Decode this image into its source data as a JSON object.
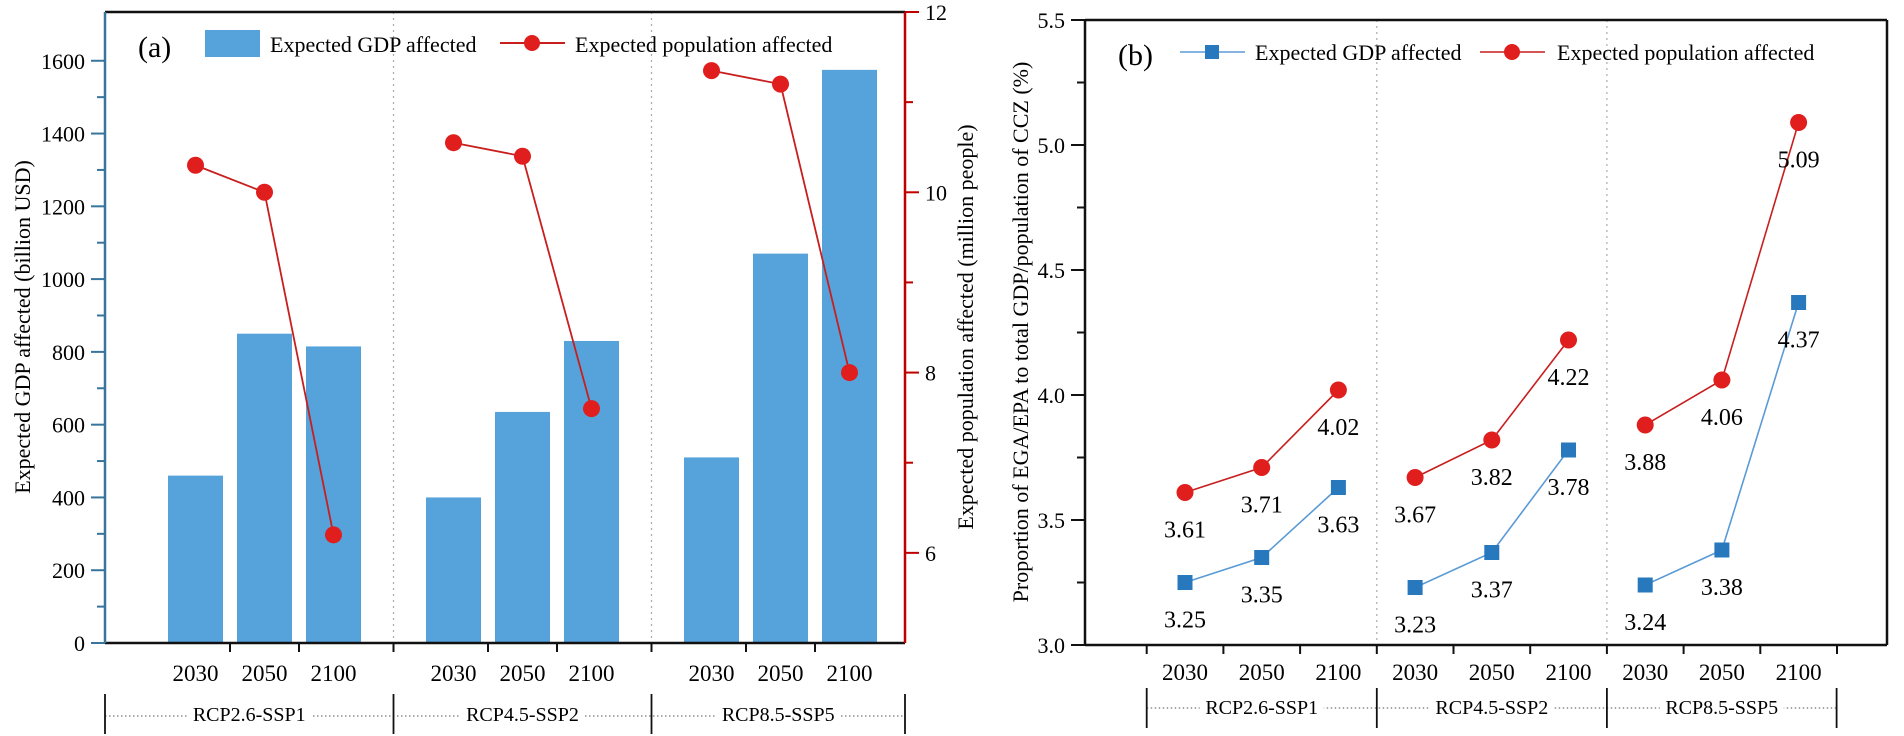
{
  "panel_a": {
    "label": "(a)",
    "legend": [
      "Expected GDP affected",
      "Expected population affected"
    ],
    "ytick_labels_left": [
      "0",
      "200",
      "400",
      "600",
      "800",
      "1000",
      "1200",
      "1400",
      "1600"
    ],
    "ytick_labels_right": [
      "6",
      "8",
      "10",
      "12"
    ],
    "group_labels": [
      "RCP2.6-SSP1",
      "RCP4.5-SSP2",
      "RCP8.5-SSP5"
    ]
  },
  "panel_b": {
    "label": "(b)",
    "legend": [
      "Expected GDP affected",
      "Expected population affected"
    ],
    "ytick_labels": [
      "3.0",
      "3.5",
      "4.0",
      "4.5",
      "5.0",
      "5.5"
    ],
    "group_labels": [
      "RCP2.6-SSP1",
      "RCP4.5-SSP2",
      "RCP8.5-SSP5"
    ]
  },
  "colors": {
    "bar_blue": "#55A3DA",
    "pop_red": "#E01E1E",
    "pop_line_red": "#C81E1E",
    "right_axis_red": "#C00000",
    "left_axis_blue_a": "#38749B",
    "gdp_marker_blue": "#2878BE",
    "gdp_line_blue": "#5B9BD5",
    "axis_black": "#111111",
    "divider_gray": "#AAAAAA",
    "leader_gray": "#555555"
  },
  "chart_data": [
    {
      "type": "bar",
      "panel": "a",
      "title": "",
      "categories": [
        "2030",
        "2050",
        "2100",
        "2030",
        "2050",
        "2100",
        "2030",
        "2050",
        "2100"
      ],
      "groups": [
        "RCP2.6-SSP1",
        "RCP4.5-SSP2",
        "RCP8.5-SSP5"
      ],
      "series": [
        {
          "name": "Expected GDP affected",
          "type": "bar",
          "axis": "left",
          "values": [
            460,
            850,
            815,
            400,
            635,
            830,
            510,
            1070,
            1575
          ]
        },
        {
          "name": "Expected population affected",
          "type": "line",
          "axis": "right",
          "values": [
            10.3,
            10.0,
            6.2,
            10.55,
            10.4,
            7.6,
            11.35,
            11.2,
            8.0
          ]
        }
      ],
      "xlabel": "",
      "ylabel": "Expected GDP affected (billion USD)",
      "ylabel_right": "Expected population affected (million people)",
      "ylim_left": [
        0,
        1740
      ],
      "yticks_left": [
        0,
        200,
        400,
        600,
        800,
        1000,
        1200,
        1400,
        1600
      ],
      "ylim_right": [
        5,
        12
      ],
      "yticks_right": [
        6,
        8,
        10,
        12
      ],
      "grid": "dotted vertical group dividers",
      "legend_position": "top-inside"
    },
    {
      "type": "line",
      "panel": "b",
      "title": "",
      "categories": [
        "2030",
        "2050",
        "2100",
        "2030",
        "2050",
        "2100",
        "2030",
        "2050",
        "2100"
      ],
      "groups": [
        "RCP2.6-SSP1",
        "RCP4.5-SSP2",
        "RCP8.5-SSP5"
      ],
      "series": [
        {
          "name": "Expected GDP affected",
          "marker": "square",
          "values": [
            3.25,
            3.35,
            3.63,
            3.23,
            3.37,
            3.78,
            3.24,
            3.38,
            4.37
          ],
          "labels": [
            "3.25",
            "3.35",
            "3.63",
            "3.23",
            "3.37",
            "3.78",
            "3.24",
            "3.38",
            "4.37"
          ]
        },
        {
          "name": "Expected population affected",
          "marker": "circle",
          "values": [
            3.61,
            3.71,
            4.02,
            3.67,
            3.82,
            4.22,
            3.88,
            4.06,
            5.09
          ],
          "labels": [
            "3.61",
            "3.71",
            "4.02",
            "3.67",
            "3.82",
            "4.22",
            "3.88",
            "4.06",
            "5.09"
          ]
        }
      ],
      "xlabel": "",
      "ylabel": "Proportion of EGA/EPA to total GDP/population of CCZ (%)",
      "ylim": [
        3.0,
        5.5
      ],
      "yticks": [
        3.0,
        3.5,
        4.0,
        4.5,
        5.0,
        5.5
      ],
      "grid": "dotted vertical group dividers",
      "legend_position": "top-inside"
    }
  ]
}
